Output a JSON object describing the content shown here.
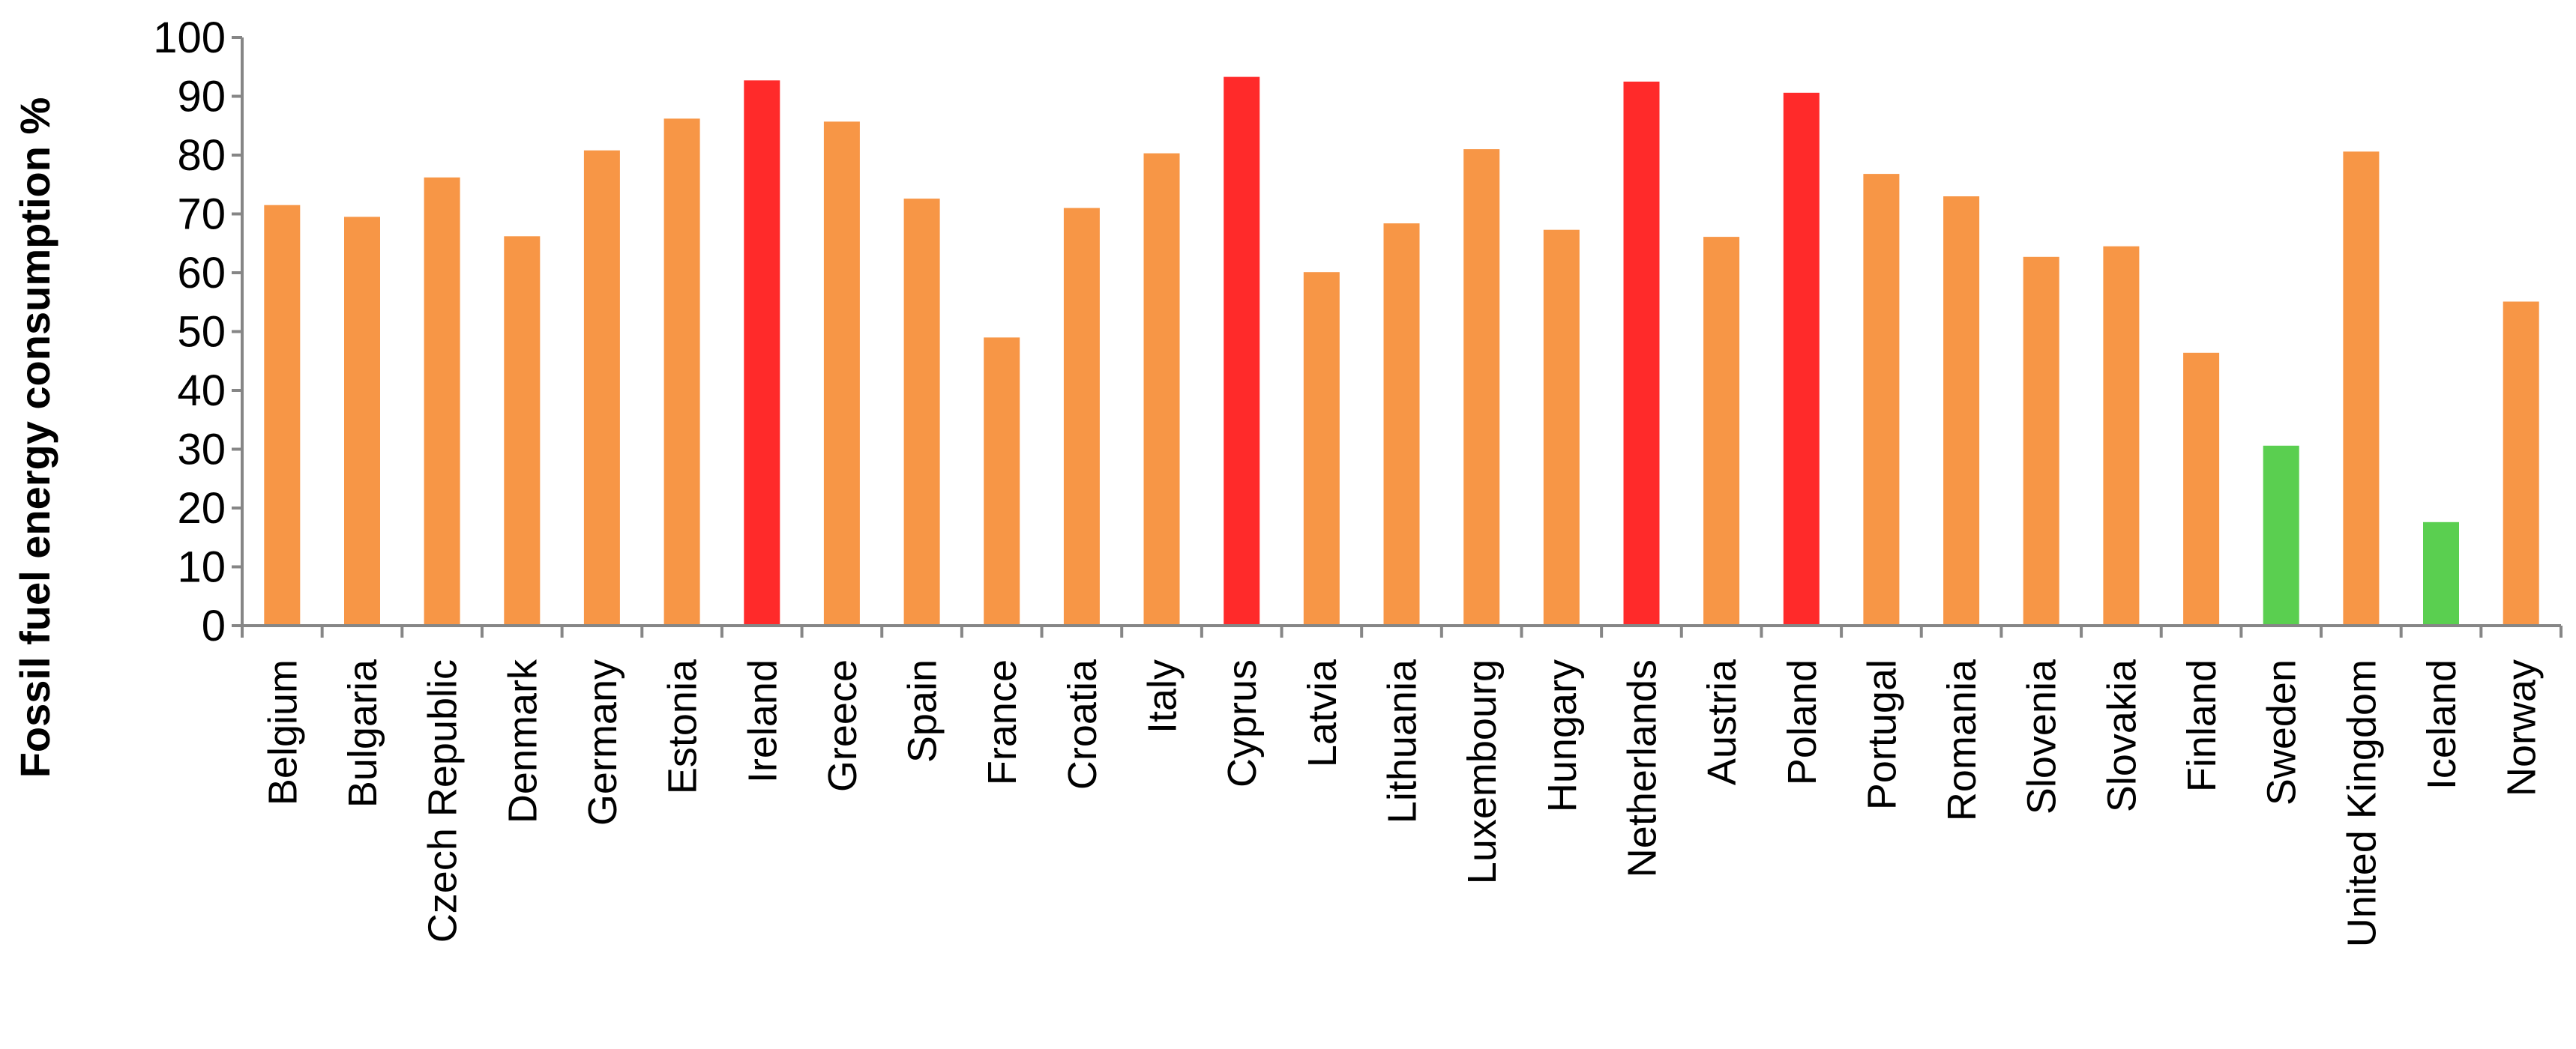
{
  "chart_data": {
    "type": "bar",
    "title": "",
    "xlabel": "",
    "ylabel": "Fossil fuel energy consumption %",
    "ylim": [
      0,
      100
    ],
    "yticks": [
      0,
      10,
      20,
      30,
      40,
      50,
      60,
      70,
      80,
      90,
      100
    ],
    "grid": false,
    "legend": "none",
    "colors": {
      "orange": "#F79646",
      "red": "#FF2A2A",
      "green": "#5ACF50",
      "axis": "#868686"
    },
    "categories": [
      "Belgium",
      "Bulgaria",
      "Czech Republic",
      "Denmark",
      "Germany",
      "Estonia",
      "Ireland",
      "Greece",
      "Spain",
      "France",
      "Croatia",
      "Italy",
      "Cyprus",
      "Latvia",
      "Lithuania",
      "Luxembourg",
      "Hungary",
      "Netherlands",
      "Austria",
      "Poland",
      "Portugal",
      "Romania",
      "Slovenia",
      "Slovakia",
      "Finland",
      "Sweden",
      "United Kingdom",
      "Iceland",
      "Norway"
    ],
    "values": [
      71.5,
      69.5,
      76.2,
      66.2,
      80.8,
      86.2,
      92.7,
      85.7,
      72.6,
      49.0,
      71.0,
      80.3,
      93.3,
      60.1,
      68.4,
      81.0,
      67.3,
      92.5,
      66.1,
      90.6,
      76.8,
      73.0,
      62.7,
      64.5,
      46.4,
      30.6,
      80.6,
      17.6,
      55.1
    ],
    "bar_colors": [
      "orange",
      "orange",
      "orange",
      "orange",
      "orange",
      "orange",
      "red",
      "orange",
      "orange",
      "orange",
      "orange",
      "orange",
      "red",
      "orange",
      "orange",
      "orange",
      "orange",
      "red",
      "orange",
      "red",
      "orange",
      "orange",
      "orange",
      "orange",
      "orange",
      "green",
      "orange",
      "green",
      "orange"
    ]
  }
}
